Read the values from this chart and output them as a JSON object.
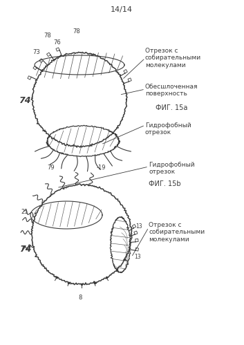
{
  "page_label": "14/14",
  "fig_a_label": "ФИГ. 15а",
  "fig_b_label": "ФИГ. 15b",
  "ann_a1": "Отрезок с\nсобирательными\nмолекулами",
  "ann_a2": "Обесшлоченная\nповерхность",
  "ann_a3": "Гидрофобный\nотрезок",
  "ann_b1": "Гидрофобный\nотрезок",
  "ann_b2": "Отрезок с\nсобирательными\nмолекулами",
  "line_color": "#3a3a3a",
  "fig_width": 3.53,
  "fig_height": 4.99,
  "dpi": 100
}
